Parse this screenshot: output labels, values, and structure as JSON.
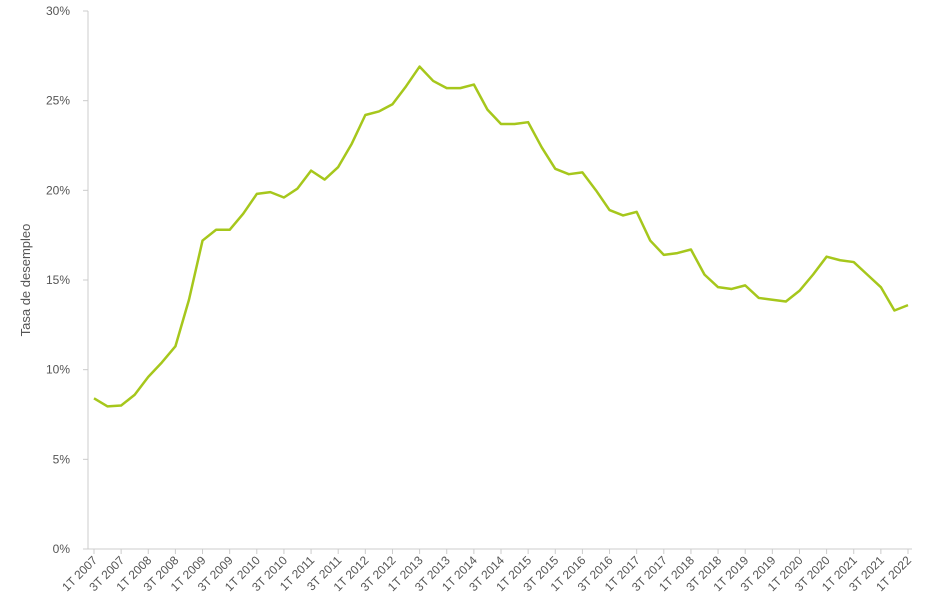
{
  "chart_data": {
    "type": "line",
    "y_label": "Tasa de desempleo",
    "categories": [
      "1T 2007",
      null,
      "3T 2007",
      null,
      "1T 2008",
      null,
      "3T 2008",
      null,
      "1T 2009",
      null,
      "3T 2009",
      null,
      "1T 2010",
      null,
      "3T 2010",
      null,
      "1T 2011",
      null,
      "3T 2011",
      null,
      "1T 2012",
      null,
      "3T 2012",
      null,
      "1T 2013",
      null,
      "3T 2013",
      null,
      "1T 2014",
      null,
      "3T 2014",
      null,
      "1T 2015",
      null,
      "3T 2015",
      null,
      "1T 2016",
      null,
      "3T 2016",
      null,
      "1T 2017",
      null,
      "3T 2017",
      null,
      "1T 2018",
      null,
      "3T 2018",
      null,
      "1T 2019",
      null,
      "3T 2019",
      null,
      "1T 2020",
      null,
      "3T 2020",
      null,
      "1T 2021",
      null,
      "3T 2021",
      null,
      "1T 2022"
    ],
    "values": [
      8.4,
      7.95,
      8.0,
      8.6,
      9.6,
      10.4,
      11.3,
      13.9,
      17.2,
      17.8,
      17.8,
      18.7,
      19.8,
      19.9,
      19.6,
      20.1,
      21.1,
      20.6,
      21.3,
      22.6,
      24.2,
      24.4,
      24.8,
      25.8,
      26.9,
      26.1,
      25.7,
      25.7,
      25.9,
      24.5,
      23.7,
      23.7,
      23.8,
      22.4,
      21.2,
      20.9,
      21.0,
      20.0,
      18.9,
      18.6,
      18.8,
      17.2,
      16.4,
      16.5,
      16.7,
      15.3,
      14.6,
      14.5,
      14.7,
      14.0,
      13.9,
      13.8,
      14.4,
      15.3,
      16.3,
      16.1,
      16.0,
      15.3,
      14.6,
      13.3,
      13.6
    ],
    "color": "#a6c71c",
    "ylim": [
      0,
      30
    ],
    "yticks": [
      {
        "value": 0,
        "label": "0%"
      },
      {
        "value": 5,
        "label": "5%"
      },
      {
        "value": 10,
        "label": "10%"
      },
      {
        "value": 15,
        "label": "15%"
      },
      {
        "value": 20,
        "label": "20%"
      },
      {
        "value": 25,
        "label": "25%"
      },
      {
        "value": 30,
        "label": "30%"
      }
    ]
  }
}
